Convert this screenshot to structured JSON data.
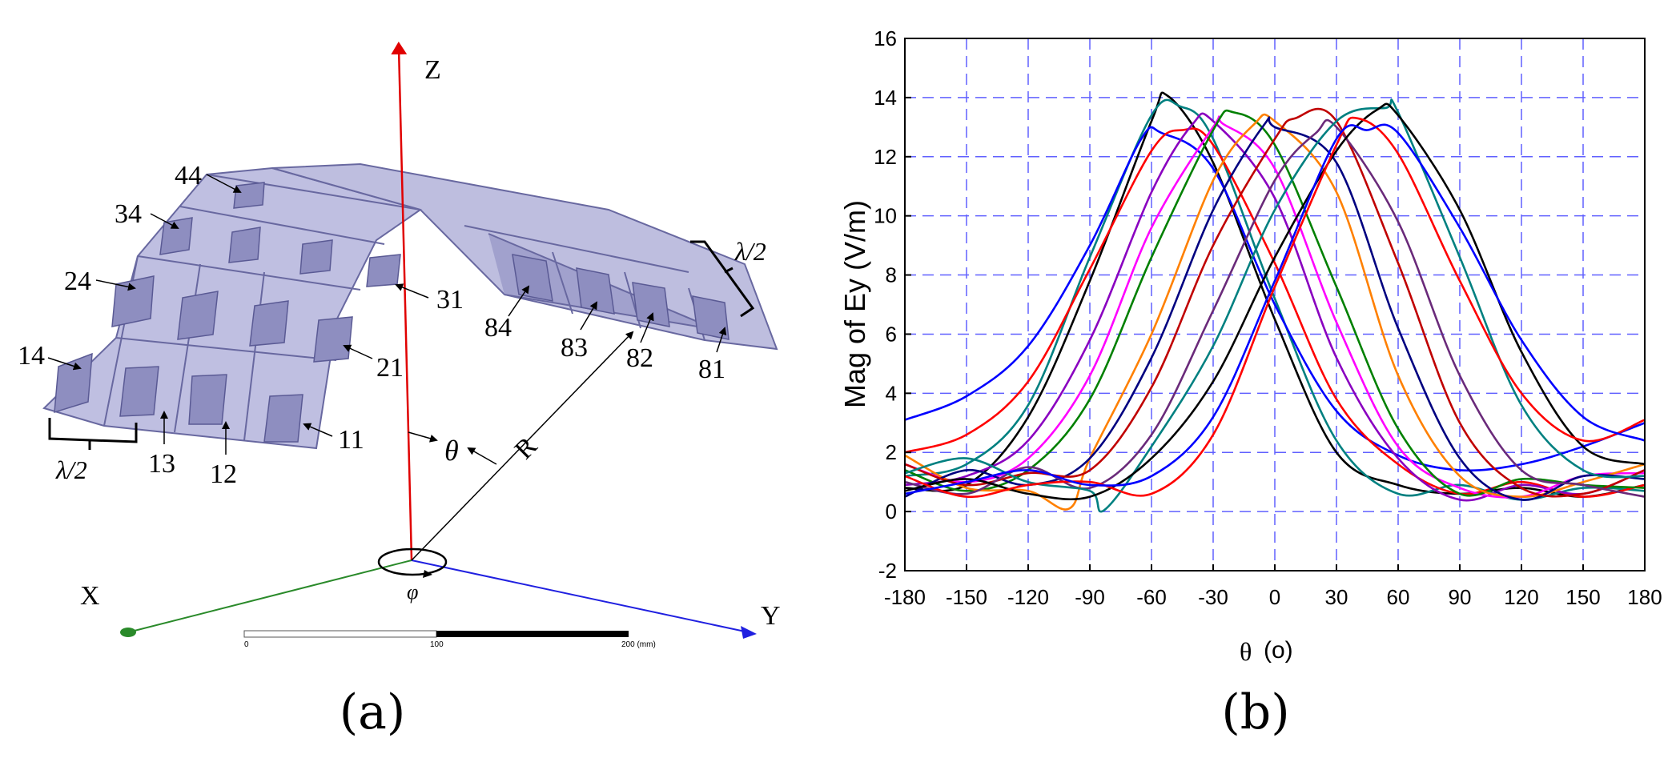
{
  "panel_a": {
    "caption": "(a)",
    "axes": {
      "z": "Z",
      "x": "X",
      "y": "Y"
    },
    "angles": {
      "theta": "θ",
      "phi": "φ",
      "radius": "R"
    },
    "half_wave_left": "λ/2",
    "half_wave_right": "λ/2",
    "element_labels": {
      "e14": "14",
      "e24": "24",
      "e34": "34",
      "e44": "44",
      "e13": "13",
      "e12": "12",
      "e11": "11",
      "e21": "21",
      "e31": "31",
      "e84": "84",
      "e83": "83",
      "e82": "82",
      "e81": "81"
    },
    "scale_bar": {
      "t0": "0",
      "t100": "100",
      "t200": "200 (mm)"
    },
    "colors": {
      "z_axis": "#e00000",
      "x_axis": "#2a8a2a",
      "y_axis": "#2020e0",
      "panel_fill": "#b0b0d8",
      "panel_stroke": "#6868a0",
      "patch_fill": "#8888b8"
    }
  },
  "panel_b": {
    "caption": "(b)",
    "chart_data": {
      "type": "line",
      "title": "",
      "xlabel": "θ",
      "xlabel_unit": "(o)",
      "ylabel": "Mag of Ey (V/m)",
      "xlim": [
        -180,
        180
      ],
      "ylim": [
        -2,
        16
      ],
      "xticks": [
        -180,
        -150,
        -120,
        -90,
        -60,
        -30,
        0,
        30,
        60,
        90,
        120,
        150,
        180
      ],
      "yticks": [
        -2,
        0,
        2,
        4,
        6,
        8,
        10,
        12,
        14,
        16
      ],
      "grid": true,
      "grid_color": "#6060ff",
      "legend": "none",
      "series": [
        {
          "color": "#000000",
          "values": [
            [
              -180,
              0.8
            ],
            [
              -150,
              0.9
            ],
            [
              -120,
              3.2
            ],
            [
              -90,
              7.8
            ],
            [
              -60,
              13.2
            ],
            [
              -52,
              14.05
            ],
            [
              -30,
              11.8
            ],
            [
              0,
              6.5
            ],
            [
              30,
              2.0
            ],
            [
              60,
              0.9
            ],
            [
              90,
              0.6
            ],
            [
              120,
              0.8
            ],
            [
              150,
              0.5
            ],
            [
              180,
              0.9
            ]
          ]
        },
        {
          "color": "#008080",
          "values": [
            [
              -180,
              1.2
            ],
            [
              -150,
              1.6
            ],
            [
              -120,
              3.6
            ],
            [
              -90,
              8.6
            ],
            [
              -60,
              13.4
            ],
            [
              -46,
              13.7
            ],
            [
              -30,
              12.6
            ],
            [
              0,
              7.2
            ],
            [
              30,
              2.4
            ],
            [
              60,
              0.6
            ],
            [
              90,
              0.9
            ],
            [
              120,
              0.4
            ],
            [
              150,
              0.8
            ],
            [
              180,
              0.7
            ]
          ]
        },
        {
          "color": "#0000ff",
          "values": [
            [
              -180,
              3.1
            ],
            [
              -150,
              3.9
            ],
            [
              -120,
              5.6
            ],
            [
              -90,
              9.0
            ],
            [
              -65,
              12.6
            ],
            [
              -55,
              12.8
            ],
            [
              -30,
              11.6
            ],
            [
              0,
              7.0
            ],
            [
              30,
              3.4
            ],
            [
              60,
              1.9
            ],
            [
              90,
              1.4
            ],
            [
              120,
              1.6
            ],
            [
              150,
              2.2
            ],
            [
              180,
              3.0
            ]
          ]
        },
        {
          "color": "#ff0000",
          "values": [
            [
              -180,
              2.0
            ],
            [
              -150,
              2.6
            ],
            [
              -120,
              4.4
            ],
            [
              -90,
              8.2
            ],
            [
              -60,
              12.2
            ],
            [
              -45,
              12.9
            ],
            [
              -30,
              12.4
            ],
            [
              0,
              8.4
            ],
            [
              30,
              3.8
            ],
            [
              60,
              1.6
            ],
            [
              90,
              0.6
            ],
            [
              120,
              1.0
            ],
            [
              150,
              0.5
            ],
            [
              180,
              0.9
            ]
          ]
        },
        {
          "color": "#8a00c0",
          "values": [
            [
              -180,
              0.9
            ],
            [
              -150,
              1.2
            ],
            [
              -120,
              2.4
            ],
            [
              -90,
              5.8
            ],
            [
              -60,
              10.8
            ],
            [
              -40,
              13.1
            ],
            [
              -30,
              13.2
            ],
            [
              0,
              10.6
            ],
            [
              30,
              5.2
            ],
            [
              60,
              1.8
            ],
            [
              90,
              0.4
            ],
            [
              120,
              0.9
            ],
            [
              150,
              0.6
            ],
            [
              180,
              1.4
            ]
          ]
        },
        {
          "color": "#ff00ff",
          "values": [
            [
              -180,
              1.6
            ],
            [
              -150,
              1.0
            ],
            [
              -120,
              1.8
            ],
            [
              -90,
              4.6
            ],
            [
              -60,
              9.6
            ],
            [
              -30,
              13.0
            ],
            [
              -25,
              13.1
            ],
            [
              0,
              11.6
            ],
            [
              30,
              6.4
            ],
            [
              60,
              2.2
            ],
            [
              90,
              0.8
            ],
            [
              120,
              0.5
            ],
            [
              150,
              1.2
            ],
            [
              180,
              1.3
            ]
          ]
        },
        {
          "color": "#008000",
          "values": [
            [
              -180,
              1.4
            ],
            [
              -150,
              0.7
            ],
            [
              -120,
              1.4
            ],
            [
              -90,
              3.8
            ],
            [
              -60,
              8.6
            ],
            [
              -30,
              12.9
            ],
            [
              -20,
              13.5
            ],
            [
              0,
              12.4
            ],
            [
              30,
              7.6
            ],
            [
              60,
              2.8
            ],
            [
              90,
              0.6
            ],
            [
              120,
              1.1
            ],
            [
              150,
              0.9
            ],
            [
              180,
              0.8
            ]
          ]
        },
        {
          "color": "#ff8000",
          "values": [
            [
              -180,
              1.9
            ],
            [
              -150,
              0.8
            ],
            [
              -120,
              0.7
            ],
            [
              -100,
              0.1
            ],
            [
              -90,
              1.8
            ],
            [
              -60,
              6.0
            ],
            [
              -30,
              11.2
            ],
            [
              -10,
              13.1
            ],
            [
              0,
              13.2
            ],
            [
              30,
              10.8
            ],
            [
              60,
              4.6
            ],
            [
              90,
              1.2
            ],
            [
              120,
              0.5
            ],
            [
              150,
              1.0
            ],
            [
              180,
              1.6
            ]
          ]
        },
        {
          "color": "#000080",
          "values": [
            [
              -180,
              0.5
            ],
            [
              -150,
              1.4
            ],
            [
              -120,
              0.9
            ],
            [
              -90,
              1.8
            ],
            [
              -60,
              5.2
            ],
            [
              -30,
              10.2
            ],
            [
              -5,
              13.1
            ],
            [
              0,
              13.0
            ],
            [
              30,
              11.8
            ],
            [
              60,
              6.2
            ],
            [
              90,
              1.8
            ],
            [
              120,
              0.4
            ],
            [
              150,
              1.2
            ],
            [
              180,
              1.1
            ]
          ]
        },
        {
          "color": "#c00000",
          "values": [
            [
              -180,
              1.6
            ],
            [
              -150,
              0.9
            ],
            [
              -120,
              1.3
            ],
            [
              -90,
              1.4
            ],
            [
              -60,
              4.2
            ],
            [
              -30,
              9.0
            ],
            [
              0,
              12.6
            ],
            [
              10,
              13.3
            ],
            [
              30,
              13.2
            ],
            [
              60,
              8.4
            ],
            [
              90,
              3.0
            ],
            [
              120,
              0.8
            ],
            [
              150,
              0.6
            ],
            [
              180,
              1.4
            ]
          ]
        },
        {
          "color": "#6a2a7a",
          "values": [
            [
              -180,
              1.0
            ],
            [
              -150,
              0.6
            ],
            [
              -120,
              1.5
            ],
            [
              -90,
              0.8
            ],
            [
              -60,
              2.6
            ],
            [
              -30,
              6.8
            ],
            [
              0,
              11.2
            ],
            [
              20,
              12.8
            ],
            [
              30,
              13.0
            ],
            [
              60,
              9.8
            ],
            [
              90,
              4.6
            ],
            [
              120,
              1.4
            ],
            [
              150,
              0.9
            ],
            [
              180,
              0.5
            ]
          ]
        },
        {
          "color": "#008080",
          "values": [
            [
              -180,
              1.3
            ],
            [
              -150,
              1.8
            ],
            [
              -120,
              1.0
            ],
            [
              -90,
              0.7
            ],
            [
              -83,
              0.05
            ],
            [
              -60,
              2.2
            ],
            [
              -30,
              5.6
            ],
            [
              0,
              10.2
            ],
            [
              30,
              13.2
            ],
            [
              54,
              13.65
            ],
            [
              60,
              13.5
            ],
            [
              90,
              8.6
            ],
            [
              120,
              3.6
            ],
            [
              150,
              1.4
            ],
            [
              180,
              1.2
            ]
          ]
        },
        {
          "color": "#000000",
          "values": [
            [
              -180,
              0.7
            ],
            [
              -150,
              1.1
            ],
            [
              -120,
              0.6
            ],
            [
              -90,
              0.5
            ],
            [
              -60,
              1.8
            ],
            [
              -30,
              4.4
            ],
            [
              0,
              8.6
            ],
            [
              30,
              12.2
            ],
            [
              50,
              13.6
            ],
            [
              60,
              13.4
            ],
            [
              90,
              10.2
            ],
            [
              120,
              5.4
            ],
            [
              150,
              2.2
            ],
            [
              180,
              1.6
            ]
          ]
        },
        {
          "color": "#ff0000",
          "values": [
            [
              -180,
              1.2
            ],
            [
              -150,
              0.5
            ],
            [
              -120,
              0.9
            ],
            [
              -90,
              1.0
            ],
            [
              -60,
              0.6
            ],
            [
              -30,
              2.6
            ],
            [
              0,
              7.6
            ],
            [
              30,
              12.4
            ],
            [
              40,
              13.3
            ],
            [
              60,
              12.1
            ],
            [
              90,
              7.8
            ],
            [
              120,
              4.0
            ],
            [
              150,
              2.4
            ],
            [
              180,
              3.1
            ]
          ]
        },
        {
          "color": "#0000ff",
          "values": [
            [
              -180,
              0.6
            ],
            [
              -150,
              1.0
            ],
            [
              -120,
              1.4
            ],
            [
              -90,
              0.9
            ],
            [
              -60,
              1.2
            ],
            [
              -30,
              3.2
            ],
            [
              0,
              7.8
            ],
            [
              30,
              12.6
            ],
            [
              45,
              12.9
            ],
            [
              60,
              12.8
            ],
            [
              90,
              9.6
            ],
            [
              120,
              5.8
            ],
            [
              150,
              3.2
            ],
            [
              180,
              2.4
            ]
          ]
        }
      ]
    }
  }
}
